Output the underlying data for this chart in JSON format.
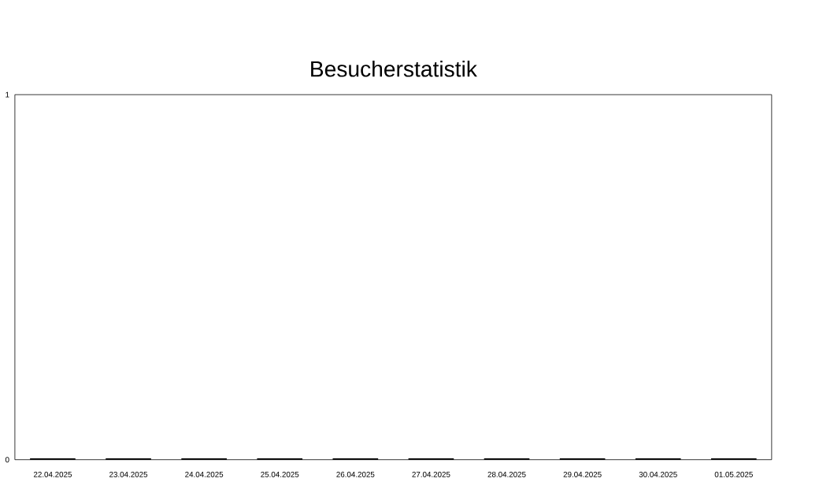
{
  "chart_data": {
    "type": "bar",
    "title": "Besucherstatistik",
    "categories": [
      "22.04.2025",
      "23.04.2025",
      "24.04.2025",
      "25.04.2025",
      "26.04.2025",
      "27.04.2025",
      "28.04.2025",
      "29.04.2025",
      "30.04.2025",
      "01.05.2025"
    ],
    "values": [
      0,
      0,
      0,
      0,
      0,
      0,
      0,
      0,
      0,
      0
    ],
    "color": "#000000",
    "ylim": [
      0,
      1
    ],
    "yticks": [
      0,
      1
    ],
    "grid": false
  }
}
